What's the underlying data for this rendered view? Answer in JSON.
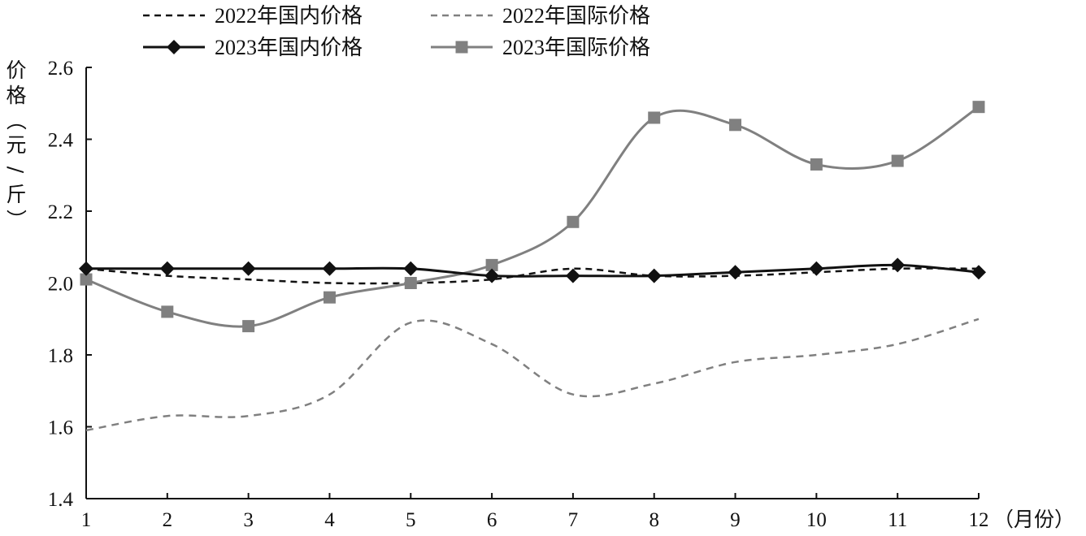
{
  "chart_data": {
    "type": "line",
    "xlabel": "（月份）",
    "ylabel": "价格（元/斤）",
    "x": [
      1,
      2,
      3,
      4,
      5,
      6,
      7,
      8,
      9,
      10,
      11,
      12
    ],
    "ylim": [
      1.4,
      2.6
    ],
    "yticks": [
      "1.4",
      "1.6",
      "1.8",
      "2.0",
      "2.2",
      "2.4",
      "2.6"
    ],
    "xticks": [
      "1",
      "2",
      "3",
      "4",
      "5",
      "6",
      "7",
      "8",
      "9",
      "10",
      "11",
      "12"
    ],
    "grid": false,
    "legend_position": "top",
    "series": [
      {
        "name": "2022年国内价格",
        "color": "#111111",
        "style": "dashed",
        "marker": "none",
        "values": [
          2.04,
          2.02,
          2.01,
          2.0,
          2.0,
          2.01,
          2.04,
          2.02,
          2.02,
          2.03,
          2.04,
          2.04
        ]
      },
      {
        "name": "2022年国际价格",
        "color": "#808080",
        "style": "dashed",
        "marker": "none",
        "values": [
          1.59,
          1.63,
          1.63,
          1.69,
          1.89,
          1.83,
          1.69,
          1.72,
          1.78,
          1.8,
          1.83,
          1.9
        ]
      },
      {
        "name": "2023年国内价格",
        "color": "#111111",
        "style": "solid",
        "marker": "diamond",
        "values": [
          2.04,
          2.04,
          2.04,
          2.04,
          2.04,
          2.02,
          2.02,
          2.02,
          2.03,
          2.04,
          2.05,
          2.03
        ]
      },
      {
        "name": "2023年国际价格",
        "color": "#808080",
        "style": "solid",
        "marker": "square",
        "values": [
          2.01,
          1.92,
          1.88,
          1.96,
          2.0,
          2.05,
          2.17,
          2.46,
          2.44,
          2.33,
          2.34,
          2.49
        ]
      }
    ]
  }
}
